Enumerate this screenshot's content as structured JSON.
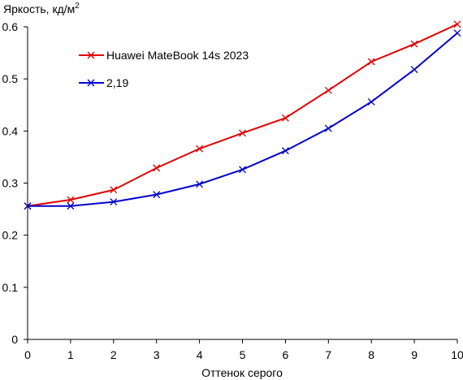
{
  "chart_data": {
    "type": "line",
    "title": "",
    "ylabel_prefix": "Яркость, кд/м",
    "ylabel_sup": "2",
    "xlabel": "Оттенок серого",
    "x": [
      0,
      1,
      2,
      3,
      4,
      5,
      6,
      7,
      8,
      9,
      10
    ],
    "xlim": [
      0,
      10
    ],
    "ylim": [
      0,
      0.6
    ],
    "xticks": [
      "0",
      "1",
      "2",
      "3",
      "4",
      "5",
      "6",
      "7",
      "8",
      "9",
      "10"
    ],
    "yticks": [
      "0",
      "0.1",
      "0.2",
      "0.3",
      "0.4",
      "0.5",
      "0.6"
    ],
    "ytick_values": [
      0,
      0.1,
      0.2,
      0.3,
      0.4,
      0.5,
      0.6
    ],
    "grid": false,
    "legend_position": "top-left",
    "series": [
      {
        "name": "Huawei MateBook 14s 2023",
        "color": "#e00000",
        "marker": "x",
        "values": [
          0.256,
          0.268,
          0.287,
          0.329,
          0.366,
          0.396,
          0.425,
          0.478,
          0.533,
          0.567,
          0.605
        ]
      },
      {
        "name": "2,19",
        "color": "#0000cc",
        "marker": "x",
        "values": [
          0.256,
          0.256,
          0.264,
          0.278,
          0.298,
          0.326,
          0.362,
          0.405,
          0.456,
          0.518,
          0.588
        ]
      }
    ]
  }
}
